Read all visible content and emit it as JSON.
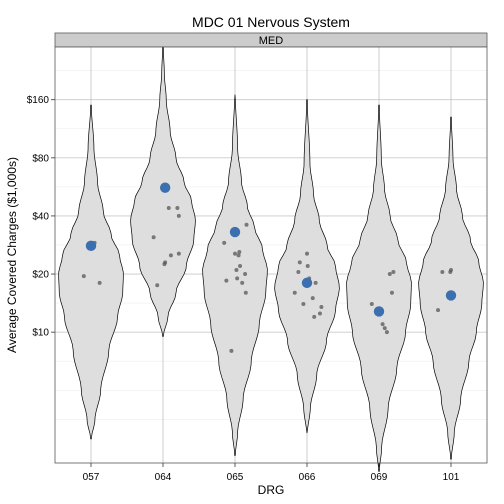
{
  "chart_data": {
    "type": "violin",
    "title": "MDC 01 Nervous System",
    "facet_label": "MED",
    "xlabel": "DRG",
    "ylabel": "Average Covered Charges ($1,000s)",
    "y_scale": "log",
    "ylim": [
      2.1,
      300
    ],
    "y_ticks": [
      {
        "value": 10,
        "label": "$10"
      },
      {
        "value": 20,
        "label": "$20"
      },
      {
        "value": 40,
        "label": "$40"
      },
      {
        "value": 80,
        "label": "$80"
      },
      {
        "value": 160,
        "label": "$160"
      }
    ],
    "grid": true,
    "colors": {
      "panel_border": "#595959",
      "strip_fill": "#cccccc",
      "grid_major": "#c9c9c9",
      "grid_minor": "#ededed",
      "violin_fill": "#dedede",
      "violin_stroke": "#000000",
      "point": "#555555",
      "mean_point": "#3b6fb0"
    },
    "categories": [
      "057",
      "064",
      "065",
      "066",
      "069",
      "101"
    ],
    "violins": [
      {
        "category": "057",
        "min": 2.8,
        "max": 150,
        "profile": [
          [
            2.8,
            0.01
          ],
          [
            3.5,
            0.12
          ],
          [
            5,
            0.3
          ],
          [
            8,
            0.55
          ],
          [
            12,
            0.82
          ],
          [
            16,
            0.98
          ],
          [
            20,
            1.0
          ],
          [
            25,
            0.88
          ],
          [
            32,
            0.62
          ],
          [
            42,
            0.38
          ],
          [
            60,
            0.2
          ],
          [
            90,
            0.09
          ],
          [
            150,
            0.01
          ]
        ],
        "mean": 28,
        "points": [
          [
            -0.1,
            19.5
          ],
          [
            0.05,
            29
          ],
          [
            0.12,
            18
          ]
        ]
      },
      {
        "category": "064",
        "min": 9.5,
        "max": 300,
        "profile": [
          [
            9.5,
            0.01
          ],
          [
            12,
            0.15
          ],
          [
            16,
            0.4
          ],
          [
            22,
            0.72
          ],
          [
            30,
            0.95
          ],
          [
            38,
            1.0
          ],
          [
            48,
            0.88
          ],
          [
            60,
            0.65
          ],
          [
            80,
            0.4
          ],
          [
            110,
            0.22
          ],
          [
            160,
            0.1
          ],
          [
            220,
            0.04
          ],
          [
            300,
            0.01
          ]
        ],
        "mean": 56,
        "points": [
          [
            -0.13,
            31
          ],
          [
            -0.08,
            17.5
          ],
          [
            0.02,
            22.5
          ],
          [
            0.03,
            23
          ],
          [
            0.08,
            44
          ],
          [
            0.11,
            25
          ],
          [
            0.2,
            44
          ],
          [
            0.22,
            40
          ],
          [
            0.22,
            25.5
          ]
        ],
        "mean_offset": 0.03
      },
      {
        "category": "065",
        "min": 2.3,
        "max": 170,
        "profile": [
          [
            2.3,
            0.01
          ],
          [
            3,
            0.08
          ],
          [
            4.5,
            0.25
          ],
          [
            7,
            0.5
          ],
          [
            11,
            0.75
          ],
          [
            16,
            0.95
          ],
          [
            21,
            1.0
          ],
          [
            27,
            0.85
          ],
          [
            35,
            0.6
          ],
          [
            45,
            0.38
          ],
          [
            60,
            0.2
          ],
          [
            90,
            0.08
          ],
          [
            170,
            0.01
          ]
        ],
        "mean": 33,
        "points": [
          [
            -0.15,
            29
          ],
          [
            -0.12,
            18.5
          ],
          [
            -0.05,
            8
          ],
          [
            0.0,
            25.5
          ],
          [
            0.02,
            21
          ],
          [
            0.03,
            19
          ],
          [
            0.05,
            25
          ],
          [
            0.06,
            26
          ],
          [
            0.07,
            22
          ],
          [
            0.1,
            18
          ],
          [
            0.14,
            20
          ],
          [
            0.16,
            36
          ],
          [
            0.15,
            16
          ]
        ]
      },
      {
        "category": "066",
        "min": 3.0,
        "max": 160,
        "profile": [
          [
            3,
            0.01
          ],
          [
            4,
            0.1
          ],
          [
            6,
            0.3
          ],
          [
            9,
            0.6
          ],
          [
            13,
            0.88
          ],
          [
            17,
            1.0
          ],
          [
            22,
            0.88
          ],
          [
            28,
            0.62
          ],
          [
            38,
            0.38
          ],
          [
            52,
            0.2
          ],
          [
            75,
            0.09
          ],
          [
            160,
            0.01
          ]
        ],
        "mean": 18,
        "points": [
          [
            -0.17,
            16
          ],
          [
            -0.1,
            23
          ],
          [
            -0.05,
            14
          ],
          [
            0.01,
            22
          ],
          [
            0.03,
            19
          ],
          [
            0.08,
            15
          ],
          [
            0.1,
            12
          ],
          [
            0.12,
            18
          ],
          [
            0.18,
            12.5
          ],
          [
            0.2,
            13.5
          ],
          [
            -0.12,
            20.5
          ],
          [
            0.0,
            25.5
          ]
        ]
      },
      {
        "category": "069",
        "min": 1.9,
        "max": 150,
        "profile": [
          [
            1.9,
            0.01
          ],
          [
            2.5,
            0.08
          ],
          [
            4,
            0.28
          ],
          [
            6.5,
            0.55
          ],
          [
            10,
            0.82
          ],
          [
            14,
            0.98
          ],
          [
            18,
            1.0
          ],
          [
            23,
            0.85
          ],
          [
            30,
            0.58
          ],
          [
            40,
            0.34
          ],
          [
            55,
            0.17
          ],
          [
            80,
            0.07
          ],
          [
            150,
            0.01
          ]
        ],
        "mean": 12.8,
        "points": [
          [
            -0.1,
            14
          ],
          [
            0.05,
            11
          ],
          [
            0.08,
            10.5
          ],
          [
            0.11,
            10
          ],
          [
            0.15,
            20
          ],
          [
            0.18,
            16
          ],
          [
            0.2,
            20.5
          ]
        ]
      },
      {
        "category": "101",
        "min": 2.2,
        "max": 130,
        "profile": [
          [
            2.2,
            0.01
          ],
          [
            3,
            0.1
          ],
          [
            4.5,
            0.3
          ],
          [
            7,
            0.55
          ],
          [
            10,
            0.78
          ],
          [
            14,
            0.95
          ],
          [
            18,
            1.0
          ],
          [
            23,
            0.86
          ],
          [
            30,
            0.6
          ],
          [
            40,
            0.35
          ],
          [
            55,
            0.17
          ],
          [
            80,
            0.06
          ],
          [
            130,
            0.01
          ]
        ],
        "mean": 15.5,
        "points": [
          [
            -0.18,
            13
          ],
          [
            -0.12,
            20.5
          ],
          [
            -0.01,
            20.5
          ],
          [
            0.0,
            21
          ]
        ]
      }
    ]
  }
}
